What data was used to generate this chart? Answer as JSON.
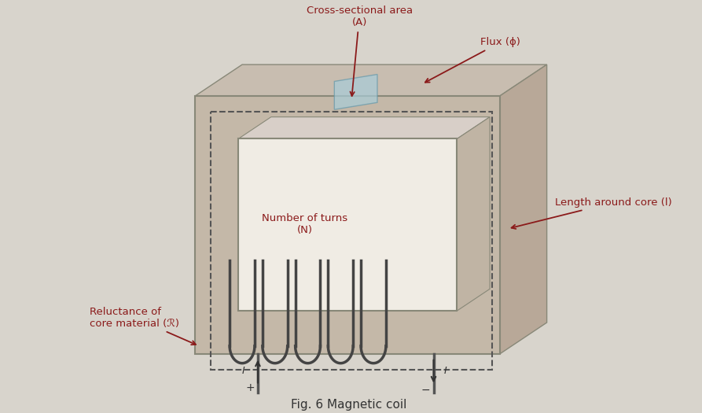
{
  "bg_color": "#d8d4cc",
  "title": "Fig. 6 Magnetic coil",
  "title_fontsize": 11,
  "title_color": "#333333",
  "label_color": "#8b1a1a",
  "label_fontsize": 9.5,
  "labels": {
    "cross_section": "Cross-sectional area\n(A)",
    "flux": "Flux (ϕ)",
    "number_turns": "Number of turns\n(N)",
    "reluctance": "Reluctance of\ncore material (ℛ)",
    "length": "Length around core (l)"
  },
  "core_color": "#b8a898",
  "core_face_color": "#c8b8a8",
  "core_shadow_color": "#a09080",
  "inner_color": "#e8e0d8",
  "dashed_color": "#555555",
  "coil_color": "#444444",
  "wire_color": "#555555",
  "cross_section_color": "#a8c8d8",
  "arrow_color": "#8b1a1a"
}
